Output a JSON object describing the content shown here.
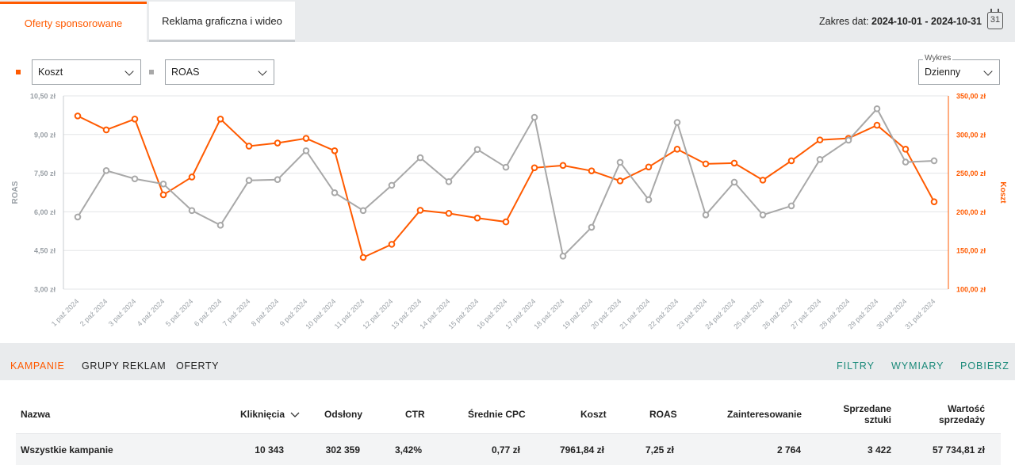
{
  "tabs": {
    "sponsored": "Oferty sponsorowane",
    "display": "Reklama graficzna i wideo"
  },
  "date_range": {
    "label": "Zakres dat:",
    "value": "2024-10-01 - 2024-10-31",
    "calendar_day": "31"
  },
  "controls": {
    "metric1": "Koszt",
    "metric2": "ROAS",
    "chart_label": "Wykres",
    "chart_mode": "Dzienny"
  },
  "colors": {
    "accent": "#ff5a00",
    "secondary": "#a8a8a8",
    "teal": "#1b8a7a"
  },
  "chart_data": {
    "type": "line",
    "x": [
      "1 paź 2024",
      "2 paź 2024",
      "3 paź 2024",
      "4 paź 2024",
      "5 paź 2024",
      "6 paź 2024",
      "7 paź 2024",
      "8 paź 2024",
      "9 paź 2024",
      "10 paź 2024",
      "11 paź 2024",
      "12 paź 2024",
      "13 paź 2024",
      "14 paź 2024",
      "15 paź 2024",
      "16 paź 2024",
      "17 paź 2024",
      "18 paź 2024",
      "19 paź 2024",
      "20 paź 2024",
      "21 paź 2024",
      "22 paź 2024",
      "23 paź 2024",
      "24 paź 2024",
      "25 paź 2024",
      "26 paź 2024",
      "27 paź 2024",
      "28 paź 2024",
      "29 paź 2024",
      "30 paź 2024",
      "31 paź 2024"
    ],
    "series": [
      {
        "name": "Koszt",
        "axis": "right",
        "color": "#ff5a00",
        "values": [
          324,
          306,
          320,
          222,
          245,
          320,
          285,
          289,
          295,
          279,
          141,
          158,
          202,
          198,
          192,
          187,
          257,
          260,
          253,
          240,
          258,
          281,
          262,
          263,
          241,
          266,
          293,
          295,
          312,
          281,
          213
        ]
      },
      {
        "name": "ROAS",
        "axis": "left",
        "color": "#a8a8a8",
        "values": [
          5.8,
          7.6,
          7.28,
          7.08,
          6.05,
          5.48,
          7.22,
          7.25,
          8.37,
          6.74,
          6.05,
          7.03,
          8.1,
          7.17,
          8.42,
          7.73,
          9.67,
          4.28,
          5.4,
          7.92,
          6.47,
          9.47,
          5.88,
          7.15,
          5.88,
          6.23,
          8.03,
          8.78,
          10.0,
          7.93,
          7.98
        ]
      }
    ],
    "yleft": {
      "label": "ROAS",
      "ticks": [
        "10,50 zł",
        "9,00 zł",
        "7,50 zł",
        "6,00 zł",
        "4,50 zł",
        "3,00 zł"
      ],
      "range": [
        3,
        10.5
      ]
    },
    "yright": {
      "label": "Koszt",
      "ticks": [
        "350,00 zł",
        "300,00 zł",
        "250,00 zł",
        "200,00 zł",
        "150,00 zł",
        "100,00 zł"
      ],
      "range": [
        100,
        350
      ]
    },
    "grid": true
  },
  "lower_tabs": {
    "campaigns": "KAMPANIE",
    "groups": "GRUPY REKLAM",
    "offers": "OFERTY"
  },
  "actions": {
    "filters": "FILTRY",
    "dimensions": "WYMIARY",
    "download": "POBIERZ"
  },
  "table": {
    "headers": {
      "name": "Nazwa",
      "clicks": "Kliknięcia",
      "impressions": "Odsłony",
      "ctr": "CTR",
      "cpc": "Średnie CPC",
      "cost": "Koszt",
      "roas": "ROAS",
      "interest": "Zainteresowanie",
      "sold_1": "Sprzedane",
      "sold_2": "sztuki",
      "value_1": "Wartość",
      "value_2": "sprzedaży"
    },
    "total": {
      "name": "Wszystkie kampanie",
      "clicks": "10 343",
      "impressions": "302 359",
      "ctr": "3,42%",
      "cpc": "0,77 zł",
      "cost": "7961,84 zł",
      "roas": "7,25 zł",
      "interest": "2 764",
      "sold": "3 422",
      "value": "57 734,81 zł"
    }
  }
}
